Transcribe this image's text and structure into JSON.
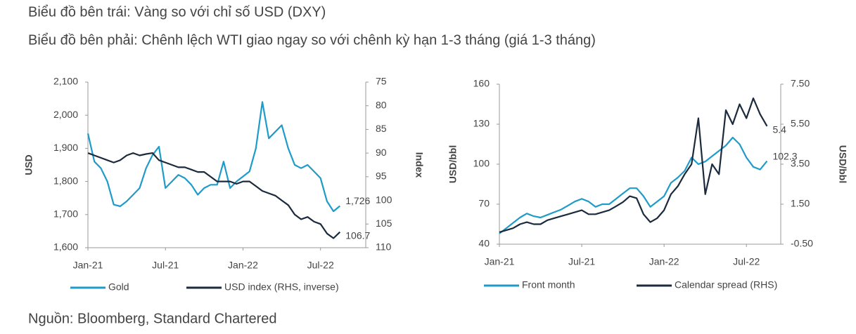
{
  "header": [
    "Biểu đồ bên trái: Vàng so với chỉ số USD (DXY)",
    "Biểu đồ bên phải: Chênh lệch WTI giao ngay so với chênh kỳ hạn 1-3 tháng (giá 1-3 tháng)"
  ],
  "source": "Nguồn: Bloomberg, Standard Chartered",
  "chart_data": [
    {
      "type": "line",
      "ylabel": "USD",
      "y2label": "Index",
      "x": [
        0,
        0.5,
        1,
        1.5,
        2,
        2.5,
        3,
        3.5,
        4,
        4.5,
        5,
        5.5,
        6,
        6.5,
        7,
        7.5,
        8,
        8.5,
        9,
        9.5,
        10,
        10.5,
        11,
        11.5,
        12,
        12.5,
        13,
        13.5,
        14,
        14.5,
        15,
        15.5,
        16,
        16.5,
        17,
        17.5,
        18,
        18.5,
        19,
        19.5
      ],
      "xlim": [
        0,
        21.5
      ],
      "xticks": [
        {
          "value": 0,
          "label": "Jan-21"
        },
        {
          "value": 6,
          "label": "Jul-21"
        },
        {
          "value": 12,
          "label": "Jan-22"
        },
        {
          "value": 18,
          "label": "Jul-22"
        }
      ],
      "ylim": [
        1600,
        2100
      ],
      "yticks": [
        {
          "value": 1600,
          "label": "1,600"
        },
        {
          "value": 1700,
          "label": "1,700"
        },
        {
          "value": 1800,
          "label": "1,800"
        },
        {
          "value": 1900,
          "label": "1,900"
        },
        {
          "value": 2000,
          "label": "2,000"
        },
        {
          "value": 2100,
          "label": "2,100"
        }
      ],
      "y2lim": [
        75,
        110
      ],
      "y2_inverted": true,
      "y2ticks": [
        75,
        80,
        85,
        90,
        95,
        100,
        105,
        110
      ],
      "series": [
        {
          "name": "Gold",
          "color": "#1f9bc9",
          "end_label": "1,726",
          "values": [
            1945,
            1860,
            1840,
            1800,
            1730,
            1725,
            1740,
            1760,
            1780,
            1840,
            1880,
            1905,
            1780,
            1800,
            1820,
            1810,
            1790,
            1760,
            1780,
            1790,
            1790,
            1860,
            1780,
            1800,
            1815,
            1830,
            1900,
            2040,
            1930,
            1950,
            1970,
            1900,
            1850,
            1840,
            1850,
            1830,
            1810,
            1740,
            1710,
            1726
          ]
        },
        {
          "name": "USD index (RHS, inverse)",
          "color": "#1b2a3c",
          "axis": "y2",
          "end_label": "106.7",
          "values": [
            90,
            90.5,
            91,
            91.5,
            92,
            91.5,
            90.5,
            90,
            90.5,
            90.2,
            90,
            91.5,
            92,
            92.5,
            93,
            93,
            93.5,
            94,
            94,
            95,
            96,
            96,
            96,
            96.5,
            96,
            96,
            97,
            98,
            98.5,
            99,
            100,
            101,
            103,
            104,
            103.5,
            104.5,
            105,
            107,
            108,
            106.7
          ]
        }
      ]
    },
    {
      "type": "line",
      "ylabel": "USD/bbl",
      "y2label": "USD/bbl",
      "x": [
        0,
        0.5,
        1,
        1.5,
        2,
        2.5,
        3,
        3.5,
        4,
        4.5,
        5,
        5.5,
        6,
        6.5,
        7,
        7.5,
        8,
        8.5,
        9,
        9.5,
        10,
        10.5,
        11,
        11.5,
        12,
        12.5,
        13,
        13.5,
        14,
        14.5,
        15,
        15.5,
        16,
        16.5,
        17,
        17.5,
        18,
        18.5,
        19,
        19.5
      ],
      "xlim": [
        0,
        20.5
      ],
      "xticks": [
        {
          "value": 0,
          "label": "Jan-21"
        },
        {
          "value": 6,
          "label": "Jul-21"
        },
        {
          "value": 12,
          "label": "Jan-22"
        },
        {
          "value": 18,
          "label": "Jul-22"
        }
      ],
      "ylim": [
        40,
        160
      ],
      "yticks": [
        40,
        70,
        100,
        130,
        160
      ],
      "y2lim": [
        -0.5,
        7.5
      ],
      "y2_inverted": false,
      "y2ticks": [
        {
          "value": -0.5,
          "label": "-0.50"
        },
        {
          "value": 1.5,
          "label": "1.50"
        },
        {
          "value": 3.5,
          "label": "3.50"
        },
        {
          "value": 5.5,
          "label": "5.50"
        },
        {
          "value": 7.5,
          "label": "7.50"
        }
      ],
      "series": [
        {
          "name": "Front month",
          "color": "#1f9bc9",
          "end_label": "102.3",
          "values": [
            48,
            52,
            56,
            60,
            63,
            61,
            60,
            62,
            64,
            66,
            69,
            72,
            74,
            72,
            68,
            70,
            70,
            74,
            78,
            82,
            82,
            76,
            68,
            72,
            76,
            86,
            90,
            95,
            105,
            100,
            102,
            106,
            110,
            114,
            120,
            115,
            105,
            98,
            96,
            102.3
          ]
        },
        {
          "name": "Calendar spread (RHS)",
          "color": "#1b2a3c",
          "axis": "y2",
          "end_label": "5.4",
          "values": [
            0.1,
            0.2,
            0.3,
            0.5,
            0.6,
            0.5,
            0.5,
            0.7,
            0.8,
            0.9,
            1.0,
            1.1,
            1.2,
            1.0,
            1.0,
            1.1,
            1.2,
            1.4,
            1.6,
            1.9,
            1.8,
            1.0,
            0.6,
            0.8,
            1.2,
            2.0,
            2.4,
            3.0,
            3.5,
            5.8,
            2.0,
            3.5,
            3.0,
            6.2,
            5.5,
            6.5,
            5.8,
            6.8,
            6.0,
            5.4
          ]
        }
      ]
    }
  ]
}
